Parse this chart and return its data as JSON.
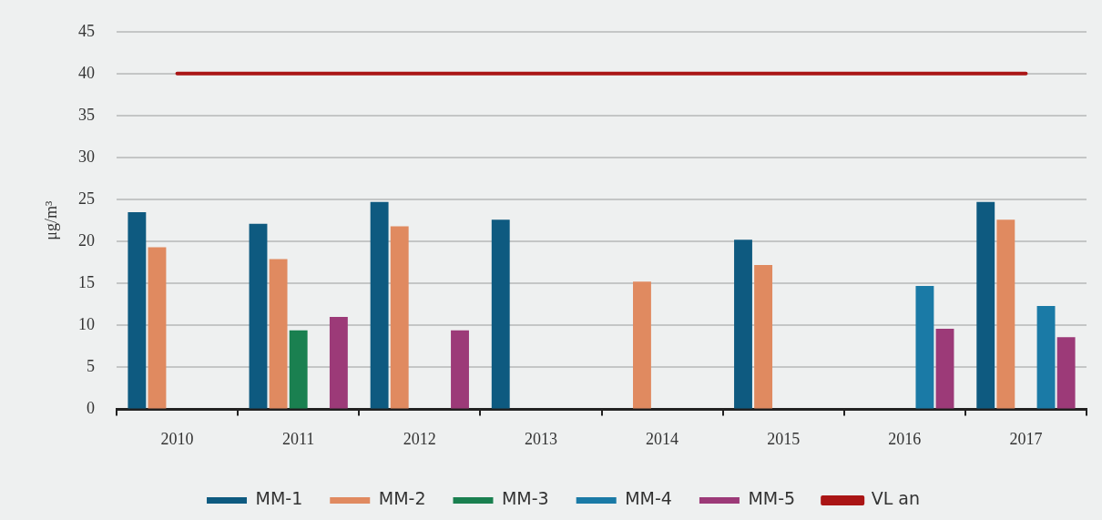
{
  "chart_data": {
    "type": "bar",
    "ylabel": "μg/m³",
    "categories": [
      "2010",
      "2011",
      "2012",
      "2013",
      "2014",
      "2015",
      "2016",
      "2017"
    ],
    "series": [
      {
        "name": "MM-1",
        "color": "#0e5a80",
        "values": [
          23.5,
          22.1,
          24.7,
          22.6,
          null,
          20.2,
          null,
          24.7
        ]
      },
      {
        "name": "MM-2",
        "color": "#e08a60",
        "values": [
          19.3,
          17.9,
          21.8,
          null,
          15.2,
          17.2,
          null,
          22.6
        ]
      },
      {
        "name": "MM-3",
        "color": "#1a8050",
        "values": [
          null,
          9.4,
          null,
          null,
          null,
          null,
          null,
          null
        ]
      },
      {
        "name": "MM-4",
        "color": "#1a7aa6",
        "values": [
          null,
          null,
          null,
          null,
          null,
          null,
          14.7,
          12.3
        ]
      },
      {
        "name": "MM-5",
        "color": "#9c3a78",
        "values": [
          null,
          11.0,
          9.4,
          null,
          null,
          null,
          9.6,
          8.6
        ]
      },
      {
        "name": "VL an",
        "type": "line",
        "color": "#aa1515",
        "values": [
          40,
          40,
          40,
          40,
          40,
          40,
          40,
          40
        ]
      }
    ],
    "ylim": [
      0,
      45
    ],
    "yticks": [
      0,
      5,
      10,
      15,
      20,
      25,
      30,
      35,
      40,
      45
    ],
    "grid": "y",
    "legend": "bottom",
    "marker": "none"
  }
}
